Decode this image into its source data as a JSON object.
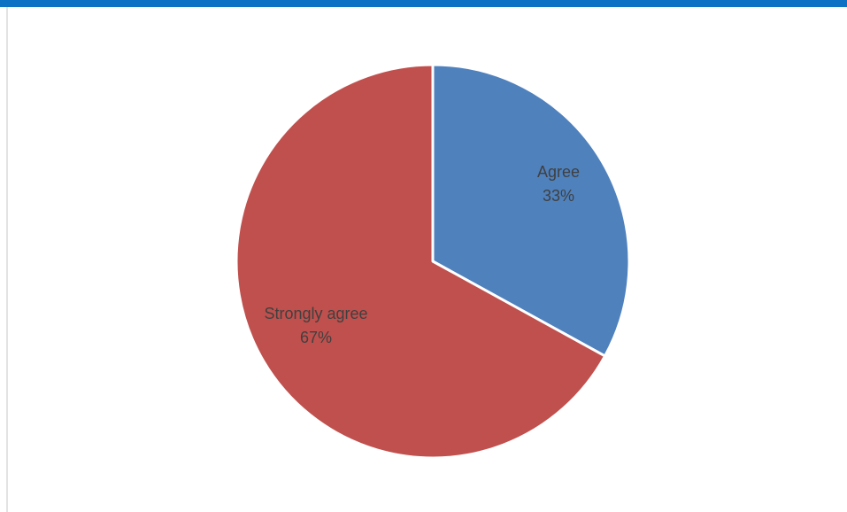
{
  "chart_data": {
    "type": "pie",
    "title": "",
    "slices": [
      {
        "label": "Agree",
        "percent_label": "33%",
        "value": 33,
        "color": "#4f81bd"
      },
      {
        "label": "Strongly agree",
        "percent_label": "67%",
        "value": 67,
        "color": "#c0504d"
      }
    ],
    "start_angle": "12 o'clock",
    "direction": "clockwise",
    "slice_border_color": "#ffffff"
  },
  "colors": {
    "accent_bar": "#0d72c4",
    "label_text": "#404040"
  }
}
